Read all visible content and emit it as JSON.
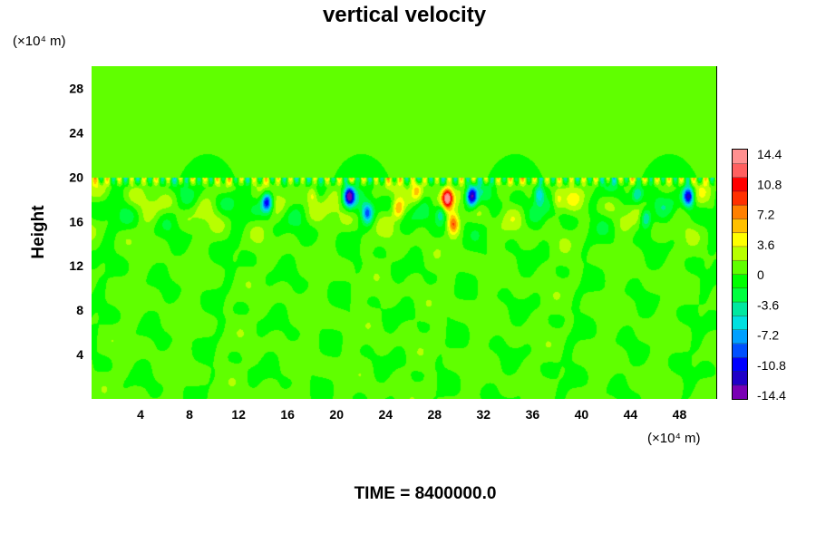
{
  "chart_data": {
    "type": "heatmap",
    "title": "vertical velocity",
    "ylabel": "Height",
    "xlabel": "",
    "x_unit_label": "(×10⁴ m)",
    "y_unit_label": "(×10⁴ m)",
    "footer": "TIME = 8400000.0",
    "x_ticks": [
      4,
      8,
      12,
      16,
      20,
      24,
      28,
      32,
      36,
      40,
      44,
      48
    ],
    "y_ticks": [
      4,
      8,
      12,
      16,
      20,
      24,
      28
    ],
    "xlim": [
      0,
      51
    ],
    "ylim": [
      0,
      30
    ],
    "grid": false,
    "colorbar": {
      "min": -14.4,
      "max": 14.4,
      "tick_labels": [
        "14.4",
        "10.8",
        "7.2",
        "3.6",
        "0",
        "-3.6",
        "-7.2",
        "-10.8",
        "-14.4"
      ],
      "colors_low_to_high": [
        "#7a00b4",
        "#2000c8",
        "#0000ff",
        "#0050ff",
        "#00a0ff",
        "#00e0e0",
        "#00e8a0",
        "#00ff40",
        "#00ff00",
        "#60ff00",
        "#b8ff00",
        "#ffff00",
        "#ffc000",
        "#ff8000",
        "#ff3000",
        "#ff0000",
        "#ff6060",
        "#ff9090"
      ]
    },
    "field": {
      "background_value": 0.3,
      "layer_top_height": 20,
      "features": [
        {
          "x": 14.3,
          "y": 17.8,
          "w": -12.0
        },
        {
          "x": 21.0,
          "y": 18.3,
          "w": -12.8
        },
        {
          "x": 22.5,
          "y": 16.8,
          "w": -8.0
        },
        {
          "x": 29.0,
          "y": 18.2,
          "w": 12.8
        },
        {
          "x": 29.5,
          "y": 15.8,
          "w": 7.5
        },
        {
          "x": 28.5,
          "y": 16.8,
          "w": -6.0
        },
        {
          "x": 31.0,
          "y": 18.3,
          "w": -12.8
        },
        {
          "x": 25.0,
          "y": 17.2,
          "w": 6.0
        },
        {
          "x": 26.5,
          "y": 18.8,
          "w": 5.0
        },
        {
          "x": 18.0,
          "y": 18.5,
          "w": 4.5
        },
        {
          "x": 36.5,
          "y": 18.5,
          "w": -7.0
        },
        {
          "x": 38.0,
          "y": 18.0,
          "w": 4.0
        },
        {
          "x": 45.2,
          "y": 16.4,
          "w": -6.5
        },
        {
          "x": 48.7,
          "y": 18.3,
          "w": -12.8
        },
        {
          "x": 44.5,
          "y": 18.5,
          "w": -5.0
        }
      ]
    }
  }
}
